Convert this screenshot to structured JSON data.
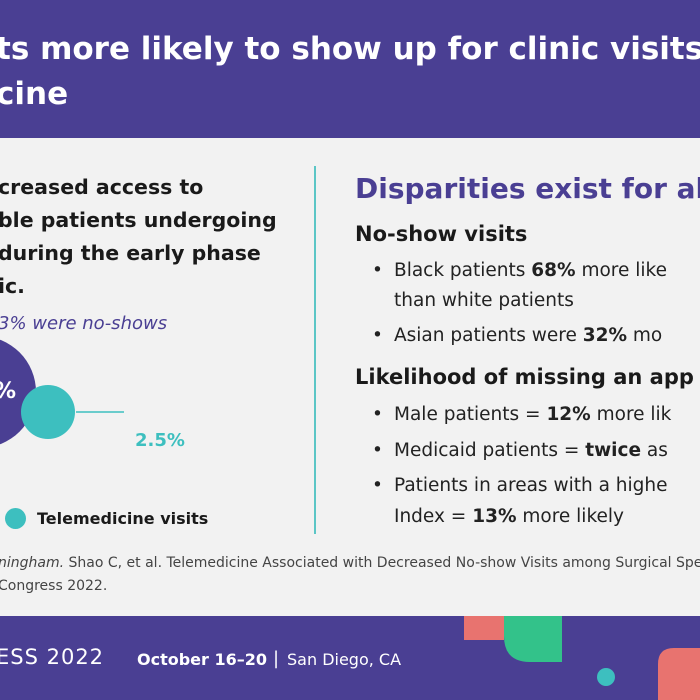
{
  "banner": {
    "title_line1": "ts more likely to show up for clinic visits",
    "title_line2": "cine"
  },
  "left": {
    "lead_lines": [
      "creased access to",
      "ble patients undergoing",
      "during the early phase",
      "ic."
    ],
    "noshow_note": "3% were no-shows",
    "big_value": "%",
    "small_value": "2.5%",
    "legend_label": "Telemedicine visits"
  },
  "right": {
    "title": "Disparities exist for al",
    "section1_title": "No-show visits",
    "section1_bullets": [
      {
        "pre": "Black patients ",
        "bold": "68%",
        "post": " more like"
      },
      {
        "pre": "than white patients",
        "bold": "",
        "post": ""
      },
      {
        "pre": "Asian patients were ",
        "bold": "32%",
        "post": " mo"
      }
    ],
    "section2_title": "Likelihood of missing an app",
    "section2_bullets": [
      {
        "pre": "Male patients = ",
        "bold": "12%",
        "post": " more lik"
      },
      {
        "pre": "Medicaid patients = ",
        "bold": "twice",
        "post": " as"
      },
      {
        "pre": "Patients in areas with a highe",
        "bold": "",
        "post": ""
      },
      {
        "pre": "Index = ",
        "bold": "13%",
        "post": " more likely"
      }
    ]
  },
  "citation": {
    "line1_italic": "ningham.",
    "line1_rest": " Shao C, et al. Telemedicine Associated with Decreased No-show Visits among Surgical Specialt",
    "line2": "Congress 2022."
  },
  "footer": {
    "congress": "ESS 2022",
    "dates": "October 16–20",
    "separator": "|",
    "location": "San Diego, CA"
  },
  "colors": {
    "purple": "#4a3f93",
    "teal": "#3dbfbf",
    "coral": "#e8736f",
    "green": "#33c28a",
    "card": "#f2f2f2"
  }
}
